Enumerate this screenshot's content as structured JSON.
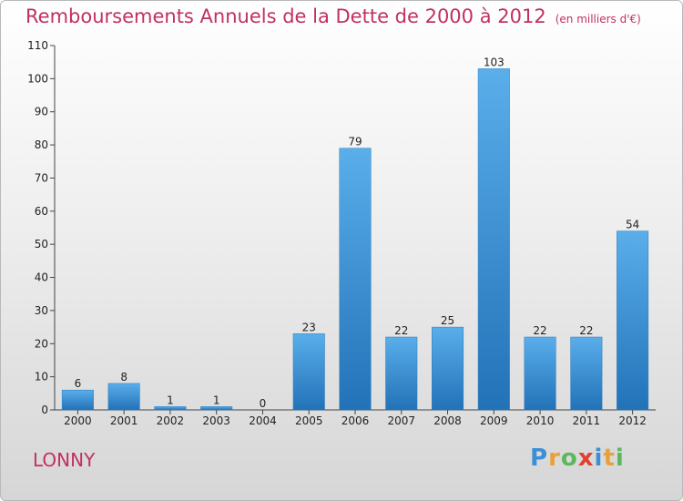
{
  "title": "Remboursements Annuels de la Dette de 2000 à 2012",
  "title_unit": "(en milliers d'€)",
  "commune": "LONNY",
  "logo": {
    "letters": [
      "P",
      "r",
      "o",
      "x",
      "i",
      "t",
      "i"
    ],
    "colors": [
      "#3b8fd6",
      "#e8a13a",
      "#5cb85c",
      "#e0402f",
      "#3b8fd6",
      "#e8a13a",
      "#5cb85c"
    ]
  },
  "chart_data": {
    "type": "bar",
    "categories": [
      "2000",
      "2001",
      "2002",
      "2003",
      "2004",
      "2005",
      "2006",
      "2007",
      "2008",
      "2009",
      "2010",
      "2011",
      "2012"
    ],
    "values": [
      6,
      8,
      1,
      1,
      0,
      23,
      79,
      22,
      25,
      103,
      22,
      22,
      54
    ],
    "title": "Remboursements Annuels de la Dette de 2000 à 2012",
    "ylim": [
      0,
      110
    ],
    "yticks": [
      0,
      10,
      20,
      30,
      40,
      50,
      60,
      70,
      80,
      90,
      100,
      110
    ],
    "grid": false,
    "bar_color": "#3a95d9"
  }
}
